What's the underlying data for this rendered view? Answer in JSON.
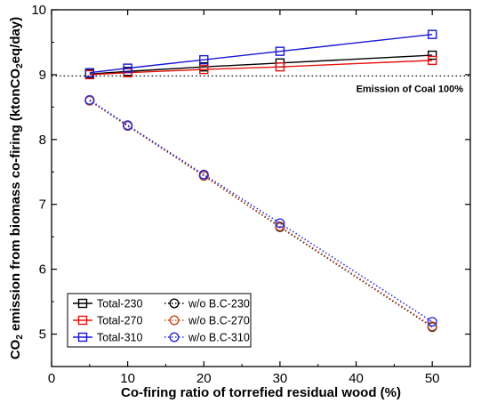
{
  "chart_data": {
    "type": "line",
    "x": [
      5,
      10,
      20,
      30,
      50
    ],
    "xlabel": "Co-firing ratio of torrefied residual wood (%)",
    "ylabel_parts": {
      "pre": "CO",
      "sub1": "2",
      "mid": " emission from biomass co-firing (ktonCO",
      "sub2": "2",
      "post": "eq/day)"
    },
    "xlim": [
      0,
      55
    ],
    "ylim": [
      4.5,
      10
    ],
    "xticks": [
      0,
      10,
      20,
      30,
      40,
      50
    ],
    "yticks": [
      5,
      6,
      7,
      8,
      9,
      10
    ],
    "grid": false,
    "legend_position": "bottom-left",
    "reference_line": {
      "y": 8.98,
      "label": "Emission of Coal 100%"
    },
    "series": [
      {
        "name": "Total-230",
        "color": "#000000",
        "marker": "square",
        "dash": "solid",
        "values": [
          9.01,
          9.05,
          9.12,
          9.18,
          9.3
        ]
      },
      {
        "name": "w/o B.C-230",
        "color": "#000000",
        "marker": "circle",
        "dash": "dotted",
        "values": [
          8.6,
          8.21,
          7.44,
          6.65,
          5.11
        ]
      },
      {
        "name": "Total-270",
        "color": "#e8120e",
        "marker": "square",
        "dash": "solid",
        "values": [
          9.0,
          9.03,
          9.08,
          9.12,
          9.22
        ]
      },
      {
        "name": "w/o B.C-270",
        "color": "#c04a1c",
        "marker": "circle",
        "dash": "dotted",
        "values": [
          8.6,
          8.21,
          7.44,
          6.66,
          5.12
        ]
      },
      {
        "name": "Total-310",
        "color": "#1818d6",
        "marker": "square",
        "dash": "solid",
        "values": [
          9.03,
          9.1,
          9.23,
          9.36,
          9.62
        ]
      },
      {
        "name": "w/o B.C-310",
        "color": "#2a2ad8",
        "marker": "circle",
        "dash": "dotted",
        "values": [
          8.61,
          8.22,
          7.46,
          6.71,
          5.19
        ]
      }
    ]
  }
}
